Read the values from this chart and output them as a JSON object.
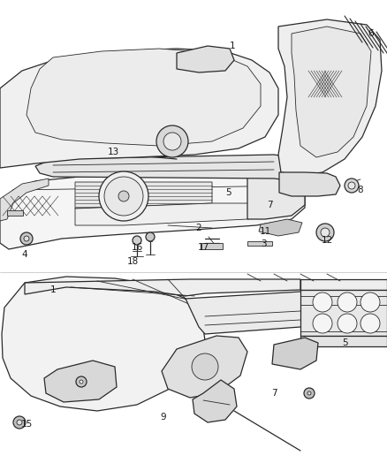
{
  "background_color": "#ffffff",
  "line_color": "#2a2a2a",
  "light_gray": "#c8c8c8",
  "mid_gray": "#a0a0a0",
  "label_color": "#1a1a1a",
  "label_fontsize": 7.5,
  "top_labels": [
    [
      "1",
      263,
      52
    ],
    [
      "2",
      225,
      258
    ],
    [
      "3",
      298,
      276
    ],
    [
      "4",
      28,
      288
    ],
    [
      "5",
      258,
      218
    ],
    [
      "6",
      420,
      38
    ],
    [
      "7",
      305,
      232
    ],
    [
      "8",
      408,
      215
    ],
    [
      "11",
      300,
      262
    ],
    [
      "12",
      370,
      272
    ],
    [
      "13",
      128,
      172
    ],
    [
      "16",
      155,
      280
    ],
    [
      "17",
      230,
      280
    ],
    [
      "18",
      150,
      296
    ]
  ],
  "bot_labels": [
    [
      "1",
      60,
      328
    ],
    [
      "5",
      390,
      388
    ],
    [
      "7",
      310,
      445
    ],
    [
      "9",
      185,
      472
    ],
    [
      "15",
      30,
      480
    ]
  ]
}
